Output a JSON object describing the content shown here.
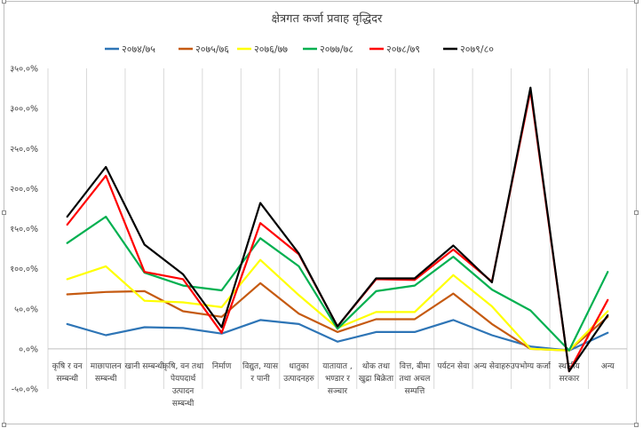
{
  "chart_data": {
    "type": "line",
    "title": "क्षेत्रगत कर्जा प्रवाह वृद्धिदर",
    "categories": [
      [
        "कृषि र वन",
        "सम्बन्धी"
      ],
      [
        "माछापालन",
        "सम्बन्धी"
      ],
      [
        "खानी सम्बन्धी"
      ],
      [
        "कृषि, वन तथा",
        "पेयपदार्थ",
        "उत्पादन",
        "सम्बन्धी"
      ],
      [
        "निर्माण"
      ],
      [
        "विद्युत, ग्यास",
        "र पानी"
      ],
      [
        "धातुका",
        "उत्पादनहरु"
      ],
      [
        "यातायात ,",
        "भण्डार र",
        "सञ्चार"
      ],
      [
        "थोक तथा",
        "खुद्रा बिक्रेता"
      ],
      [
        "वित्त, बीमा",
        "तथा अचल",
        "सम्पत्ति"
      ],
      [
        "पर्यटन सेवा"
      ],
      [
        "अन्य सेवाहरु"
      ],
      [
        "उपभोग्य कर्जा"
      ],
      [
        "स्थानीय",
        "सरकार"
      ],
      [
        "अन्य"
      ]
    ],
    "y_ticks": [
      "-५०.०%",
      "०.०%",
      "५०.०%",
      "१००.०%",
      "१५०.०%",
      "२००.०%",
      "२५०.०%",
      "३००.०%",
      "३५०.०%"
    ],
    "ylim": [
      -50,
      350
    ],
    "y_step": 50,
    "grid": "vertical-gridlines",
    "legend_position": "top",
    "series": [
      {
        "name": "२०७४/७५",
        "color": "#2e75b6",
        "values": [
          31,
          17,
          27,
          26,
          19,
          36,
          31,
          9,
          21,
          21,
          36,
          17,
          3,
          -2,
          20
        ]
      },
      {
        "name": "२०७५/७६",
        "color": "#c55a11",
        "values": [
          68,
          71,
          72,
          47,
          40,
          82,
          44,
          21,
          37,
          37,
          69,
          31,
          0,
          -2,
          40
        ]
      },
      {
        "name": "२०७६/७७",
        "color": "#ffff00",
        "values": [
          87,
          103,
          60,
          58,
          52,
          111,
          67,
          26,
          46,
          46,
          92,
          53,
          0,
          -2,
          47
        ]
      },
      {
        "name": "२०७७/७८",
        "color": "#00b050",
        "values": [
          132,
          165,
          95,
          79,
          73,
          138,
          103,
          25,
          72,
          79,
          115,
          74,
          48,
          -2,
          96
        ]
      },
      {
        "name": "२०७८/७९",
        "color": "#ff0000",
        "values": [
          155,
          216,
          96,
          87,
          20,
          157,
          118,
          28,
          87,
          86,
          124,
          84,
          322,
          -28,
          61
        ]
      },
      {
        "name": "२०७९/८०",
        "color": "#000000",
        "values": [
          165,
          227,
          130,
          93,
          27,
          182,
          119,
          28,
          88,
          88,
          129,
          83,
          326,
          -28,
          42
        ]
      }
    ]
  }
}
